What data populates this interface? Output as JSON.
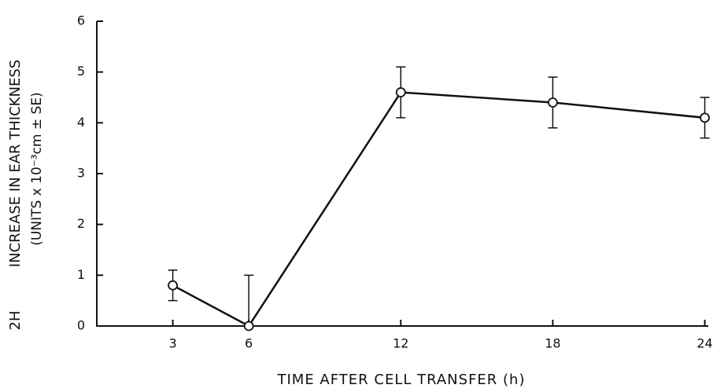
{
  "chart_data": {
    "type": "line",
    "side_label": "2H",
    "ylabel": "INCREASE IN EAR THICKNESS",
    "ylabel2": "(UNITS x 10⁻³cm ± SE)",
    "xlabel": "TIME AFTER CELL TRANSFER (h)",
    "x": [
      3,
      6,
      12,
      18,
      24
    ],
    "series": [
      {
        "color": "#111111",
        "values": [
          0.8,
          0,
          4.6,
          4.4,
          4.1
        ],
        "errors": [
          0.3,
          1.0,
          0.5,
          0.5,
          0.4
        ]
      }
    ],
    "xlim": [
      0,
      24.2
    ],
    "xticks": [
      3,
      6,
      12,
      18,
      24
    ],
    "ylim": [
      0,
      6
    ],
    "yticks": [
      0,
      1,
      2,
      3,
      4,
      5,
      6
    ]
  }
}
